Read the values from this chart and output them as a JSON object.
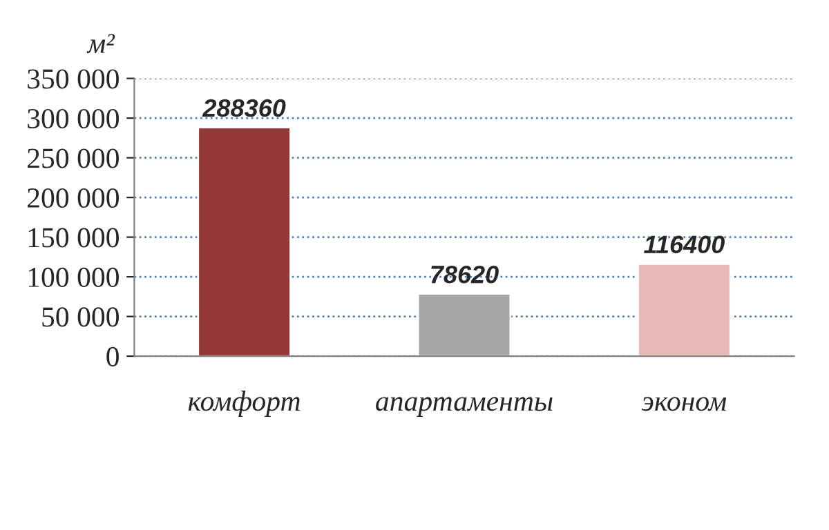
{
  "chart_data": {
    "type": "bar",
    "ylabel": "м²",
    "categories": [
      "комфорт",
      "апартаменты",
      "эконом"
    ],
    "values": [
      288360,
      78620,
      116400
    ],
    "colors": [
      "#953735",
      "#a6a6a6",
      "#e6b9b8"
    ],
    "ylim": [
      0,
      350000
    ],
    "yticks": [
      0,
      {
        "value": 50000,
        "label": "50 000"
      },
      {
        "value": 100000,
        "label": "100 000"
      },
      {
        "value": 150000,
        "label": "150 000"
      },
      {
        "value": 200000,
        "label": "200 000"
      },
      {
        "value": 250000,
        "label": "250 000"
      },
      {
        "value": 300000,
        "label": "300 000"
      },
      {
        "value": 350000,
        "label": "350 000"
      }
    ],
    "grid": "y",
    "data_labels": true,
    "legend": false
  }
}
